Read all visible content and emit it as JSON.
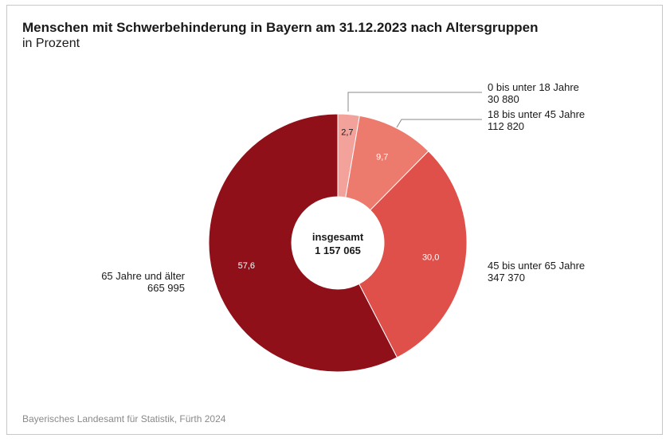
{
  "chart_data": {
    "type": "pie",
    "title": "Menschen mit Schwerbehinderung in Bayern am 31.12.2023 nach Altersgruppen",
    "subtitle": "in Prozent",
    "center_label": "insgesamt",
    "center_value": "1 157 065",
    "slices": [
      {
        "label": "0 bis unter 18 Jahre",
        "count": "30 880",
        "value": 2.7,
        "value_label": "2,7",
        "color": "#f2a29a"
      },
      {
        "label": "18 bis unter 45 Jahre",
        "count": "112 820",
        "value": 9.7,
        "value_label": "9,7",
        "color": "#ec7a6d"
      },
      {
        "label": "45 bis unter 65 Jahre",
        "count": "347 370",
        "value": 30.0,
        "value_label": "30,0",
        "color": "#e0504a"
      },
      {
        "label": "65 Jahre und älter",
        "count": "665 995",
        "value": 57.6,
        "value_label": "57,6",
        "color": "#8f1019"
      }
    ],
    "source": "Bayerisches Landesamt für Statistik, Fürth 2024"
  }
}
